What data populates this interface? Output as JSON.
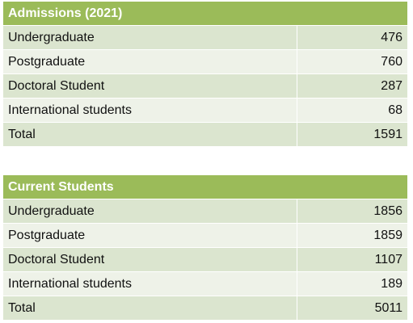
{
  "admissions": {
    "title": "Admissions (2021)",
    "rows": [
      {
        "label": "Undergraduate",
        "value": "476"
      },
      {
        "label": "Postgraduate",
        "value": "760"
      },
      {
        "label": "Doctoral Student",
        "value": "287"
      },
      {
        "label": "International students",
        "value": "68"
      },
      {
        "label": "Total",
        "value": "1591"
      }
    ]
  },
  "current": {
    "title": "Current Students",
    "rows": [
      {
        "label": "Undergraduate",
        "value": "1856"
      },
      {
        "label": "Postgraduate",
        "value": "1859"
      },
      {
        "label": "Doctoral Student",
        "value": "1107"
      },
      {
        "label": "International students",
        "value": "189"
      },
      {
        "label": "Total",
        "value": "5011"
      }
    ]
  }
}
